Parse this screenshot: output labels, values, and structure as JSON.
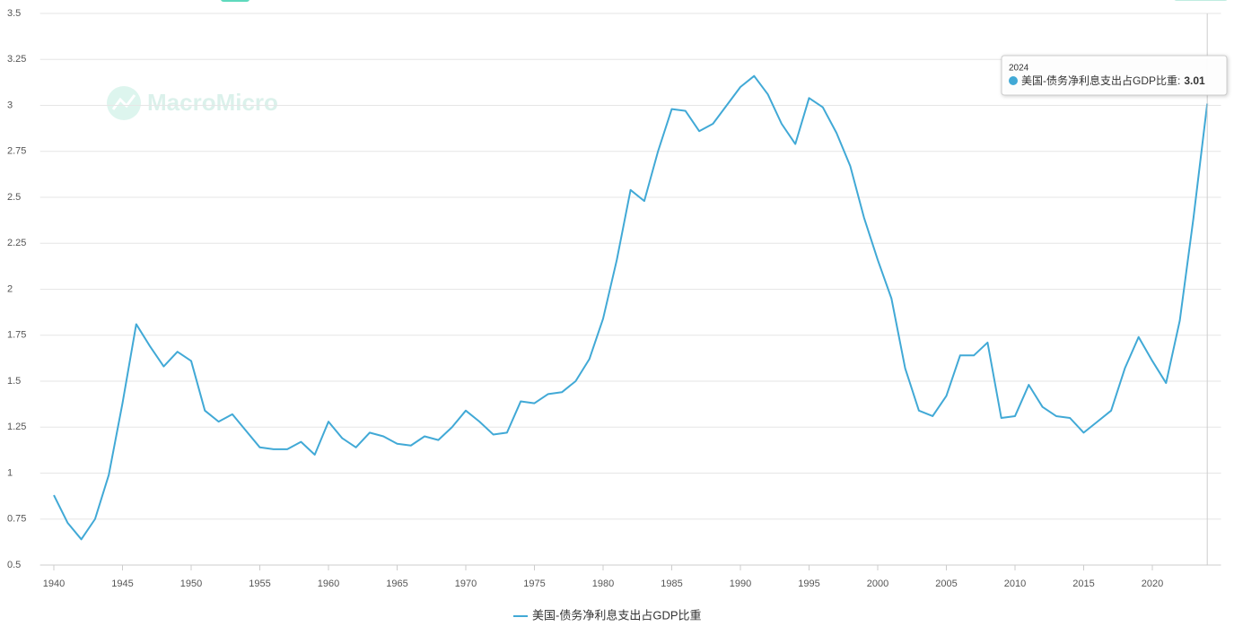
{
  "chart_data": {
    "type": "line",
    "watermark": "MacroMicro",
    "x": [
      1940,
      1941,
      1942,
      1943,
      1944,
      1945,
      1946,
      1947,
      1948,
      1949,
      1950,
      1951,
      1952,
      1953,
      1954,
      1955,
      1956,
      1957,
      1958,
      1959,
      1960,
      1961,
      1962,
      1963,
      1964,
      1965,
      1966,
      1967,
      1968,
      1969,
      1970,
      1971,
      1972,
      1973,
      1974,
      1975,
      1976,
      1977,
      1978,
      1979,
      1980,
      1981,
      1982,
      1983,
      1984,
      1985,
      1986,
      1987,
      1988,
      1989,
      1990,
      1991,
      1992,
      1993,
      1994,
      1995,
      1996,
      1997,
      1998,
      1999,
      2000,
      2001,
      2002,
      2003,
      2004,
      2005,
      2006,
      2007,
      2008,
      2009,
      2010,
      2011,
      2012,
      2013,
      2014,
      2015,
      2016,
      2017,
      2018,
      2019,
      2020,
      2021,
      2022,
      2023,
      2024
    ],
    "series": [
      {
        "name": "美国-债务净利息支出占GDP比重",
        "color": "#41a9d6",
        "values": [
          0.88,
          0.73,
          0.64,
          0.75,
          0.99,
          1.38,
          1.81,
          1.69,
          1.58,
          1.66,
          1.61,
          1.34,
          1.28,
          1.32,
          1.23,
          1.14,
          1.13,
          1.13,
          1.17,
          1.1,
          1.28,
          1.19,
          1.14,
          1.22,
          1.2,
          1.16,
          1.15,
          1.2,
          1.18,
          1.25,
          1.34,
          1.28,
          1.21,
          1.22,
          1.39,
          1.38,
          1.43,
          1.44,
          1.5,
          1.62,
          1.84,
          2.16,
          2.54,
          2.48,
          2.75,
          2.98,
          2.97,
          2.86,
          2.9,
          3.0,
          3.1,
          3.16,
          3.06,
          2.9,
          2.79,
          3.04,
          2.99,
          2.85,
          2.67,
          2.39,
          2.16,
          1.95,
          1.57,
          1.34,
          1.31,
          1.42,
          1.64,
          1.64,
          1.71,
          1.3,
          1.31,
          1.48,
          1.36,
          1.31,
          1.3,
          1.22,
          1.28,
          1.34,
          1.57,
          1.74,
          1.61,
          1.49,
          1.83,
          2.39,
          3.01
        ]
      }
    ],
    "xlim": [
      1939,
      2025
    ],
    "xticks": [
      1940,
      1945,
      1950,
      1955,
      1960,
      1965,
      1970,
      1975,
      1980,
      1985,
      1990,
      1995,
      2000,
      2005,
      2010,
      2015,
      2020
    ],
    "ylim": [
      0.5,
      3.5
    ],
    "yticks": [
      0.5,
      0.75,
      1,
      1.25,
      1.5,
      1.75,
      2,
      2.25,
      2.5,
      2.75,
      3,
      3.25,
      3.5
    ],
    "grid": true,
    "legend": "bottom",
    "tooltip": {
      "index": 84,
      "text": "美国-债务净利息支出占GDP比重:"
    }
  }
}
